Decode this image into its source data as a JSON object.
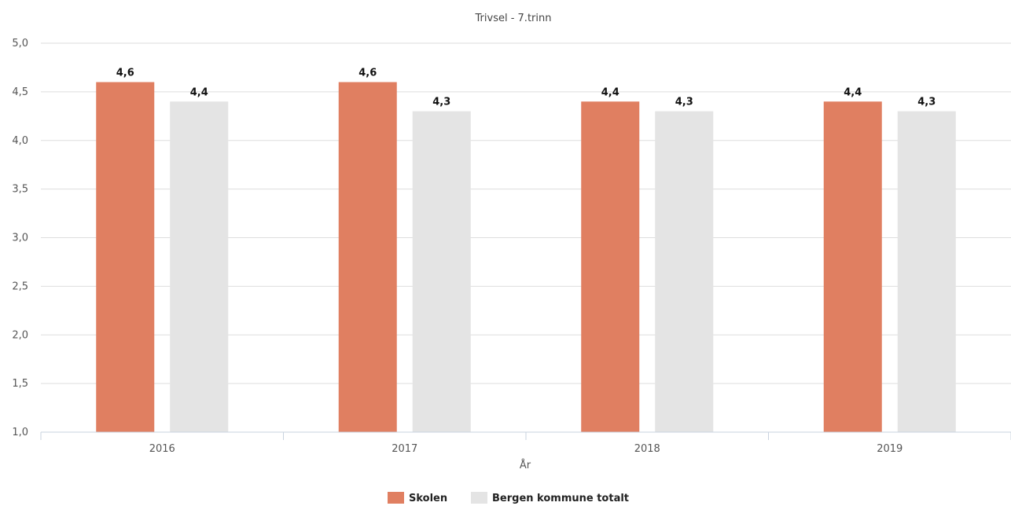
{
  "chart_data": {
    "type": "bar",
    "title": "Trivsel - 7.trinn",
    "xlabel": "År",
    "ylabel": "",
    "categories": [
      "2016",
      "2017",
      "2018",
      "2019"
    ],
    "ylim": [
      1.0,
      5.0
    ],
    "yticks": [
      "1,0",
      "1,5",
      "2,0",
      "2,5",
      "3,0",
      "3,5",
      "4,0",
      "4,5",
      "5,0"
    ],
    "grid": true,
    "legend_position": "bottom-center",
    "series": [
      {
        "name": "Skolen",
        "color": "#e07f61",
        "values": [
          4.6,
          4.6,
          4.4,
          4.4
        ],
        "labels": [
          "4,6",
          "4,6",
          "4,4",
          "4,4"
        ]
      },
      {
        "name": "Bergen kommune totalt",
        "color": "#e4e4e4",
        "values": [
          4.4,
          4.3,
          4.3,
          4.3
        ],
        "labels": [
          "4,4",
          "4,3",
          "4,3",
          "4,3"
        ]
      }
    ]
  }
}
